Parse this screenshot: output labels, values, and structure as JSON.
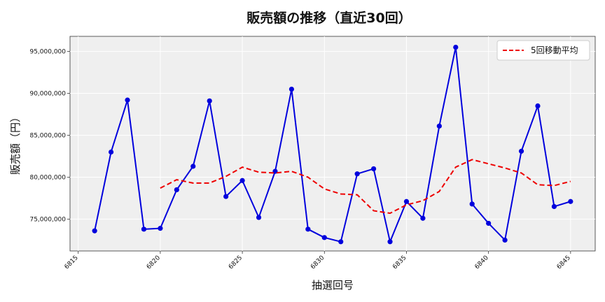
{
  "chart_data": {
    "type": "line",
    "title": "販売額の推移（直近30回）",
    "xlabel": "抽選回号",
    "ylabel": "販売額（円）",
    "x": [
      6816,
      6817,
      6818,
      6819,
      6820,
      6821,
      6822,
      6823,
      6824,
      6825,
      6826,
      6827,
      6828,
      6829,
      6830,
      6831,
      6832,
      6833,
      6834,
      6835,
      6836,
      6837,
      6838,
      6839,
      6840,
      6841,
      6842,
      6843,
      6844,
      6845
    ],
    "xlim": [
      6814.5,
      6846.5
    ],
    "ylim": [
      71200000,
      96800000
    ],
    "x_ticks": [
      6815,
      6820,
      6825,
      6830,
      6835,
      6840,
      6845
    ],
    "y_ticks": [
      75000000,
      80000000,
      85000000,
      90000000,
      95000000
    ],
    "y_tick_labels": [
      "75,000,000",
      "80,000,000",
      "85,000,000",
      "90,000,000",
      "95,000,000"
    ],
    "grid": true,
    "legend_position": "top-right",
    "series": [
      {
        "values": [
          73600000,
          83000000,
          89200000,
          73800000,
          73900000,
          78500000,
          81300000,
          89100000,
          77700000,
          79600000,
          75200000,
          80700000,
          90500000,
          73800000,
          72800000,
          72300000,
          80400000,
          81000000,
          72300000,
          77100000,
          75100000,
          86100000,
          95500000,
          76800000,
          74500000,
          72500000,
          83100000,
          88500000,
          76500000,
          77100000
        ],
        "color": "#0000dd",
        "style": "solid-markers"
      },
      {
        "name": "5回移動平均",
        "values": [
          null,
          null,
          null,
          null,
          78700000,
          79700000,
          79300000,
          79300000,
          80100000,
          81200000,
          80600000,
          80500000,
          80700000,
          80000000,
          78600000,
          78000000,
          77900000,
          76000000,
          75700000,
          76700000,
          77200000,
          78300000,
          81200000,
          82100000,
          81600000,
          81100000,
          80500000,
          79100000,
          79000000,
          79500000
        ],
        "color": "#ee0000",
        "style": "dashed"
      }
    ]
  }
}
